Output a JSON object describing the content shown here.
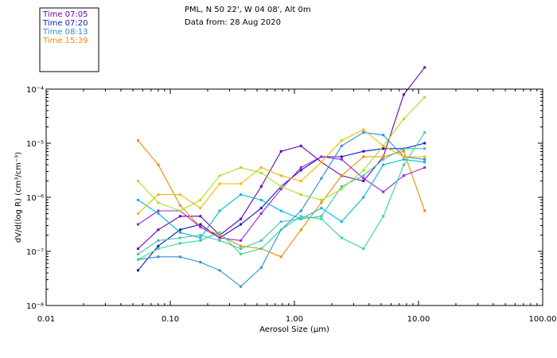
{
  "chart_data": {
    "type": "line",
    "title": "PML, N 50 22', W 04 08', Alt 0m",
    "subtitle": "Data from: 28 Aug 2020",
    "xlabel": "Aerosol Size (μm)",
    "ylabel": "dV/d(log R) (cm³/cm⁻³)",
    "xscale": "log",
    "yscale": "log",
    "xlim": [
      0.01,
      100
    ],
    "ylim_exponent": [
      -8,
      -4
    ],
    "x_ticks": [
      "0.01",
      "0.10",
      "1.00",
      "10.00",
      "100.00"
    ],
    "y_ticks": [
      "10⁻⁸",
      "10⁻⁷",
      "10⁻⁶",
      "10⁻⁵",
      "10⁻⁴"
    ],
    "grid": false,
    "legend_position": "top-left",
    "x": [
      0.055,
      0.08,
      0.12,
      0.175,
      0.25,
      0.37,
      0.54,
      0.78,
      1.13,
      1.65,
      2.4,
      3.6,
      5.2,
      7.6,
      11.2
    ],
    "series": [
      {
        "name": "Time 07:05",
        "color": "#6a00b0",
        "values_log10": [
          -6.95,
          -6.6,
          -6.35,
          -6.35,
          -6.7,
          -6.4,
          -5.8,
          -5.15,
          -5.05,
          -5.35,
          -5.6,
          -5.7,
          -5.25,
          -4.1,
          -3.6
        ]
      },
      {
        "name": "Time 07:20",
        "color": "#1515c0",
        "values_log10": [
          -7.35,
          -6.9,
          -6.6,
          -6.5,
          -6.75,
          -6.5,
          -6.2,
          -5.8,
          -5.5,
          -5.25,
          -5.25,
          -5.15,
          -5.1,
          -5.1,
          -5.0
        ]
      },
      {
        "name": "Time 08:13",
        "color": "#2b8ee0",
        "values_log10": [
          -7.15,
          -7.1,
          -7.1,
          -7.2,
          -7.35,
          -7.65,
          -7.3,
          -6.6,
          -6.25,
          -5.65,
          -5.05,
          -4.8,
          -4.85,
          -5.25,
          -5.3
        ]
      },
      {
        "name": "Time 15:39",
        "color": "#f08a00",
        "values_log10": [
          -4.95,
          -5.4,
          -6.15,
          -6.55,
          -6.7,
          -6.9,
          -6.95,
          -7.1,
          -6.6,
          -6.1,
          -5.6,
          -5.25,
          -5.25,
          -5.15,
          -6.25
        ]
      },
      {
        "name": "",
        "color": "#9a20d8",
        "values_log10": [
          -6.5,
          -6.25,
          -6.25,
          -6.55,
          -6.75,
          -6.8,
          -6.3,
          -5.85,
          -5.45,
          -5.25,
          -5.3,
          -5.65,
          -5.9,
          -5.6,
          -5.45
        ]
      },
      {
        "name": "",
        "color": "#00b8d8",
        "values_log10": [
          -6.05,
          -6.3,
          -6.65,
          -6.75,
          -6.25,
          -5.95,
          -6.05,
          -6.25,
          -6.4,
          -6.2,
          -6.45,
          -6.0,
          -5.4,
          -5.3,
          -5.35
        ]
      },
      {
        "name": "",
        "color": "#30d890",
        "values_log10": [
          -7.15,
          -6.95,
          -6.85,
          -6.8,
          -6.65,
          -7.05,
          -6.95,
          -6.6,
          -6.35,
          -6.4,
          -6.75,
          -6.95,
          -6.35,
          -5.4,
          -4.8
        ]
      },
      {
        "name": "",
        "color": "#40c0b8",
        "values_log10": [
          -7.05,
          -6.8,
          -6.75,
          -6.7,
          -6.8,
          -6.95,
          -6.8,
          -6.45,
          -6.4,
          -6.35,
          -5.8,
          -5.6,
          -5.3,
          -5.1,
          -5.1
        ]
      },
      {
        "name": "",
        "color": "#a8e020",
        "values_log10": [
          -5.7,
          -6.1,
          -6.25,
          -6.05,
          -5.6,
          -5.45,
          -5.55,
          -5.8,
          -5.95,
          -6.05,
          -5.85,
          -5.5,
          -5.05,
          -4.55,
          -4.15
        ]
      },
      {
        "name": "",
        "color": "#f0b800",
        "values_log10": [
          -6.3,
          -5.95,
          -5.95,
          -6.2,
          -5.75,
          -5.75,
          -5.45,
          -5.6,
          -5.7,
          -5.35,
          -4.95,
          -4.75,
          -5.05,
          -5.25,
          -5.25
        ]
      }
    ]
  }
}
